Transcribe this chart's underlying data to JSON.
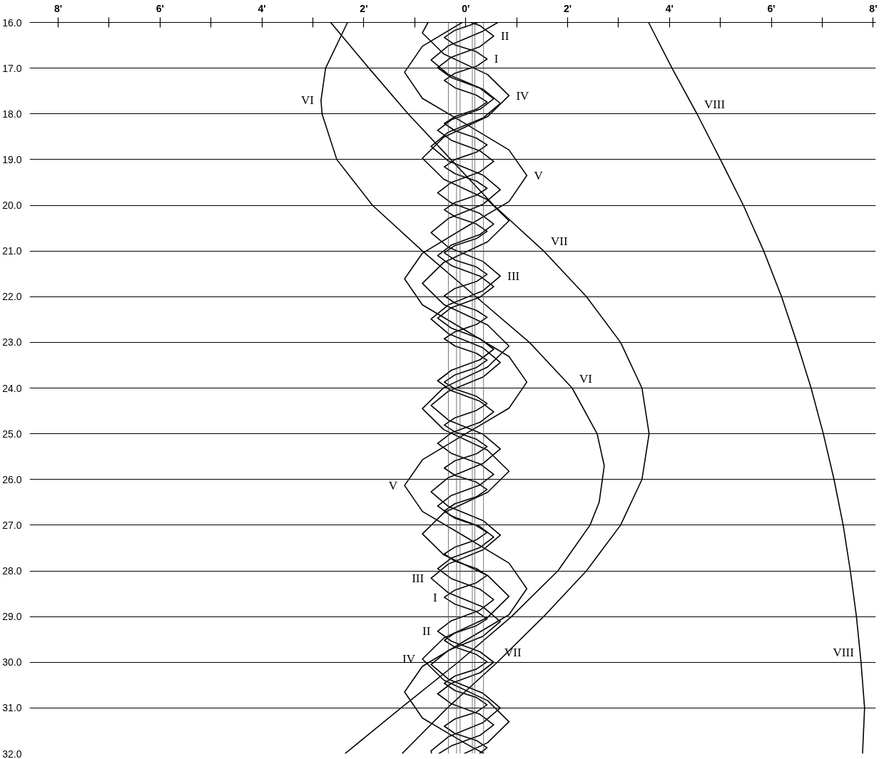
{
  "chart_data": {
    "type": "line",
    "xlim": [
      -8.56,
      8.05
    ],
    "ylim": [
      32,
      16
    ],
    "xticks": [
      {
        "value": -8,
        "label": "8'"
      },
      {
        "value": -7,
        "label": null
      },
      {
        "value": -6,
        "label": "6'"
      },
      {
        "value": -5,
        "label": null
      },
      {
        "value": -4,
        "label": "4'"
      },
      {
        "value": -3,
        "label": null
      },
      {
        "value": -2,
        "label": "2'"
      },
      {
        "value": -1,
        "label": null
      },
      {
        "value": 0,
        "label": "0'"
      },
      {
        "value": 1,
        "label": null
      },
      {
        "value": 2,
        "label": "2'"
      },
      {
        "value": 3,
        "label": null
      },
      {
        "value": 4,
        "label": "4'"
      },
      {
        "value": 5,
        "label": null
      },
      {
        "value": 6,
        "label": "6'"
      },
      {
        "value": 7,
        "label": null
      },
      {
        "value": 8,
        "label": "8'"
      }
    ],
    "yticks": [
      {
        "value": 16,
        "label": "16.0"
      },
      {
        "value": 17,
        "label": "17.0"
      },
      {
        "value": 18,
        "label": "18.0"
      },
      {
        "value": 19,
        "label": "19.0"
      },
      {
        "value": 20,
        "label": "20.0"
      },
      {
        "value": 21,
        "label": "21.0"
      },
      {
        "value": 22,
        "label": "22.0"
      },
      {
        "value": 23,
        "label": "23.0"
      },
      {
        "value": 24,
        "label": "24.0"
      },
      {
        "value": 25,
        "label": "25.0"
      },
      {
        "value": 26,
        "label": "26.0"
      },
      {
        "value": 27,
        "label": "27.0"
      },
      {
        "value": 28,
        "label": "28.0"
      },
      {
        "value": 29,
        "label": "29.0"
      },
      {
        "value": 30,
        "label": "30.0"
      },
      {
        "value": 31,
        "label": "31.0"
      },
      {
        "value": 32,
        "label": "32.0"
      }
    ],
    "grid": "y",
    "series": [
      {
        "color": "#000000",
        "x": [
          3.59,
          4.05,
          4.54,
          5.0,
          5.45,
          5.85,
          6.2,
          6.5,
          6.78,
          7.02,
          7.23,
          7.41,
          7.55,
          7.67,
          7.76,
          7.83,
          7.79
        ],
        "values": [
          16,
          17,
          18,
          19,
          20,
          21,
          22,
          23,
          24,
          25,
          26,
          27,
          28,
          29,
          30,
          31,
          32
        ]
      },
      {
        "color": "#000000",
        "x": [
          -2.65,
          -1.9,
          -1.13,
          -0.29,
          0.55,
          1.53,
          2.37,
          3.04,
          3.46,
          3.6,
          3.46,
          3.04,
          2.37,
          1.53,
          0.62,
          -0.36,
          -1.25
        ],
        "values": [
          16,
          17,
          18,
          19,
          20,
          21,
          22,
          23,
          24,
          25,
          26,
          27,
          28,
          29,
          30,
          31,
          32
        ]
      },
      {
        "color": "#000000",
        "x": [
          -2.32,
          -2.75,
          -2.84,
          -2.82,
          -2.53,
          -1.83,
          -0.85,
          0.2,
          1.25,
          2.09,
          2.58,
          2.72,
          2.62,
          2.44,
          1.81,
          0.9,
          -0.15,
          -1.27,
          -2.37
        ],
        "values": [
          16,
          17,
          17.7,
          18,
          19,
          20,
          21,
          22,
          23,
          24,
          25,
          25.7,
          26.5,
          27,
          28,
          29,
          30,
          31,
          32
        ]
      },
      {
        "color": "#000000",
        "x": [
          -0.07,
          -0.85,
          -1.2,
          -0.85,
          0,
          0.85,
          1.2,
          0.85,
          0,
          -0.85,
          -1.2,
          -0.85,
          0,
          0.85,
          1.2,
          0.85,
          0,
          -0.85,
          -1.2,
          -0.85,
          0,
          0.85,
          1.2,
          0.85,
          0,
          -0.85,
          -1.2,
          -0.85,
          0,
          0.36
        ],
        "values": [
          16.0,
          16.52,
          17.09,
          17.66,
          18.22,
          18.79,
          19.35,
          19.92,
          20.48,
          21.05,
          21.61,
          22.18,
          22.74,
          23.31,
          23.87,
          24.44,
          25.0,
          25.57,
          26.13,
          26.7,
          27.26,
          27.83,
          28.39,
          28.96,
          29.52,
          30.09,
          30.65,
          31.22,
          31.78,
          32.0
        ]
      },
      {
        "color": "#000000",
        "x": [
          -0.74,
          -0.85,
          -0.43,
          0.43,
          0.85,
          0.43,
          -0.43,
          -0.85,
          -0.43,
          0.43,
          0.85,
          0.43,
          -0.43,
          -0.85,
          -0.43,
          0.43,
          0.85,
          0.43,
          -0.43,
          -0.85,
          -0.43,
          0.43,
          0.85,
          0.43,
          -0.43,
          -0.85,
          -0.43,
          0.43,
          0.85,
          0.43,
          -0.43,
          -0.85,
          -0.43,
          0.43,
          0.85,
          0.43,
          -0.03
        ],
        "values": [
          16.0,
          16.23,
          16.69,
          17.14,
          17.6,
          18.06,
          18.51,
          18.97,
          19.43,
          19.88,
          20.34,
          20.8,
          21.25,
          21.71,
          22.17,
          22.62,
          23.08,
          23.54,
          23.99,
          24.45,
          24.91,
          25.36,
          25.82,
          26.28,
          26.73,
          27.19,
          27.65,
          28.1,
          28.56,
          29.02,
          29.47,
          29.93,
          30.39,
          30.84,
          31.3,
          31.76,
          32.0
        ]
      },
      {
        "color": "#000000",
        "x": [
          0.63,
          0.34,
          -0.34,
          -0.68,
          -0.34,
          0.34,
          0.68,
          0.34,
          -0.34,
          -0.68,
          -0.34,
          0.34,
          0.68,
          0.34,
          -0.34,
          -0.68,
          -0.34,
          0.34,
          0.68,
          0.34,
          -0.34,
          -0.68,
          -0.34,
          0.34,
          0.68,
          0.34,
          -0.34,
          -0.68,
          -0.34,
          0.34,
          0.68,
          0.34,
          -0.34,
          -0.68,
          -0.34,
          0.34,
          0.68,
          0.34,
          -0.34,
          -0.68,
          -0.34,
          0.34,
          0.68,
          0.34,
          -0.34,
          -0.68,
          -0.34,
          0.34,
          0.68,
          0.34,
          -0.34,
          -0.68,
          -0.67
        ],
        "values": [
          16.0,
          16.19,
          16.51,
          16.82,
          17.14,
          17.46,
          17.77,
          18.09,
          18.4,
          18.71,
          19.03,
          19.34,
          19.66,
          19.98,
          20.29,
          20.6,
          20.92,
          21.23,
          21.55,
          21.87,
          22.18,
          22.49,
          22.81,
          23.12,
          23.44,
          23.76,
          24.07,
          24.38,
          24.7,
          25.01,
          25.33,
          25.65,
          25.96,
          26.27,
          26.59,
          26.9,
          27.22,
          27.54,
          27.85,
          28.16,
          28.48,
          28.79,
          29.11,
          29.43,
          29.74,
          30.05,
          30.37,
          30.68,
          31.0,
          31.32,
          31.63,
          31.94,
          32.0
        ]
      },
      {
        "color": "#000000",
        "x": [
          0.1,
          0.28,
          0.55,
          0.28,
          -0.28,
          -0.55,
          -0.28,
          0.28,
          0.55,
          0.28,
          -0.28,
          -0.55,
          -0.28,
          0.28,
          0.55,
          0.28,
          -0.28,
          -0.55,
          -0.28,
          0.28,
          0.55,
          0.28,
          -0.28,
          -0.55,
          -0.28,
          0.28,
          0.55,
          0.28,
          -0.28,
          -0.55,
          -0.28,
          0.28,
          0.55,
          0.28,
          -0.28,
          -0.55,
          -0.28,
          0.28,
          0.55,
          0.28,
          -0.28,
          -0.55,
          -0.28,
          0.28,
          0.55,
          0.28,
          -0.28,
          -0.55,
          -0.28,
          0.28,
          0.55,
          0.28,
          -0.28,
          -0.55,
          -0.28,
          0.28,
          0.55,
          0.28,
          -0.28,
          -0.55,
          -0.28,
          0.28,
          0.55,
          0.28,
          -0.28,
          -0.55,
          -0.28,
          0.28,
          0.55,
          0.28,
          -0.28,
          -0.53
        ],
        "values": [
          16.0,
          16.07,
          16.3,
          16.53,
          16.76,
          16.99,
          17.21,
          17.44,
          17.67,
          17.9,
          18.13,
          18.36,
          18.58,
          18.81,
          19.04,
          19.27,
          19.5,
          19.73,
          19.95,
          20.18,
          20.41,
          20.64,
          20.87,
          21.1,
          21.32,
          21.55,
          21.78,
          22.01,
          22.24,
          22.47,
          22.69,
          22.92,
          23.15,
          23.38,
          23.61,
          23.84,
          24.06,
          24.29,
          24.52,
          24.75,
          24.98,
          25.21,
          25.43,
          25.66,
          25.89,
          26.12,
          26.35,
          26.58,
          26.8,
          27.03,
          27.26,
          27.49,
          27.72,
          27.95,
          28.17,
          28.4,
          28.63,
          28.86,
          29.09,
          29.32,
          29.54,
          29.77,
          30.0,
          30.23,
          30.46,
          30.69,
          30.91,
          31.14,
          31.37,
          31.6,
          31.83,
          32.0
        ]
      },
      {
        "color": "#000000",
        "x": [
          0.24,
          -0.21,
          -0.42,
          -0.21,
          0.21,
          0.42,
          0.21,
          -0.21,
          -0.42,
          -0.21,
          0.21,
          0.42,
          0.21,
          -0.21,
          -0.42,
          -0.21,
          0.21,
          0.42,
          0.21,
          -0.21,
          -0.42,
          -0.21,
          0.21,
          0.42,
          0.21,
          -0.21,
          -0.42,
          -0.21,
          0.21,
          0.42,
          0.21,
          -0.21,
          -0.42,
          -0.21,
          0.21,
          0.42,
          0.21,
          -0.21,
          -0.42,
          -0.21,
          0.21,
          0.42,
          0.21,
          -0.21,
          -0.42,
          -0.21,
          0.21,
          0.42,
          0.21,
          -0.21,
          -0.42,
          -0.21,
          0.21,
          0.42,
          0.21,
          -0.21,
          -0.42,
          -0.21,
          0.21,
          0.42,
          0.21,
          -0.21,
          -0.42,
          -0.21,
          0.21,
          0.42,
          0.21,
          -0.21,
          -0.42,
          -0.21,
          0.21,
          0.42,
          0.21,
          -0.21,
          -0.42,
          -0.21,
          0.21,
          0.42,
          0.21,
          -0.21,
          -0.42,
          -0.21,
          0.21,
          0.42,
          0.21,
          -0.21,
          -0.42,
          -0.21,
          0.21,
          0.42,
          0.21,
          -0.21,
          -0.42,
          -0.21,
          0.21,
          0.42,
          0.21,
          -0.21,
          -0.42,
          -0.21,
          0.21,
          0.42,
          0.27
        ],
        "values": [
          16.0,
          16.17,
          16.33,
          16.49,
          16.64,
          16.8,
          16.96,
          17.11,
          17.27,
          17.43,
          17.59,
          17.74,
          17.9,
          18.06,
          18.21,
          18.37,
          18.53,
          18.68,
          18.84,
          19.0,
          19.16,
          19.31,
          19.47,
          19.63,
          19.78,
          19.94,
          20.1,
          20.25,
          20.41,
          20.57,
          20.73,
          20.88,
          21.04,
          21.2,
          21.35,
          21.51,
          21.67,
          21.82,
          21.98,
          22.14,
          22.3,
          22.45,
          22.61,
          22.77,
          22.92,
          23.08,
          23.24,
          23.39,
          23.55,
          23.71,
          23.87,
          24.02,
          24.18,
          24.34,
          24.49,
          24.65,
          24.81,
          24.96,
          25.12,
          25.28,
          25.44,
          25.59,
          25.75,
          25.91,
          26.06,
          26.22,
          26.38,
          26.53,
          26.69,
          26.85,
          27.01,
          27.16,
          27.32,
          27.48,
          27.63,
          27.79,
          27.95,
          28.1,
          28.26,
          28.42,
          28.58,
          28.73,
          28.89,
          29.05,
          29.2,
          29.36,
          29.52,
          29.67,
          29.83,
          29.99,
          30.15,
          30.3,
          30.46,
          30.62,
          30.77,
          30.93,
          31.09,
          31.24,
          31.4,
          31.56,
          31.71,
          31.87,
          32.0
        ]
      }
    ],
    "ref_lines": [
      {
        "axis": "x",
        "value": -0.34,
        "color": "#555555"
      },
      {
        "axis": "x",
        "value": -0.18,
        "color": "#555555"
      },
      {
        "axis": "x",
        "value": -0.11,
        "color": "#555555"
      },
      {
        "axis": "x",
        "value": 0.13,
        "color": "#555555"
      },
      {
        "axis": "x",
        "value": 0.18,
        "color": "#555555"
      },
      {
        "axis": "x",
        "value": 0.35,
        "color": "#555555"
      }
    ],
    "annotations": [
      {
        "text": "II",
        "x": 0.55,
        "y": 16.3
      },
      {
        "text": "I",
        "x": 0.42,
        "y": 16.8
      },
      {
        "text": "IV",
        "x": 0.85,
        "y": 17.6
      },
      {
        "text": "VI",
        "x": -2.84,
        "y": 17.7
      },
      {
        "text": "VIII",
        "x": 4.54,
        "y": 18
      },
      {
        "text": "V",
        "x": 1.2,
        "y": 19.35
      },
      {
        "text": "VII",
        "x": 1.53,
        "y": 21
      },
      {
        "text": "III",
        "x": 0.68,
        "y": 21.55
      },
      {
        "text": "VI",
        "x": 2.09,
        "y": 24
      },
      {
        "text": "V",
        "x": -1.2,
        "y": 26.13
      },
      {
        "text": "III",
        "x": -0.68,
        "y": 28.16
      },
      {
        "text": "I",
        "x": -0.42,
        "y": 28.58
      },
      {
        "text": "II",
        "x": -0.55,
        "y": 29.32
      },
      {
        "text": "IV",
        "x": -0.85,
        "y": 29.93
      },
      {
        "text": "VII",
        "x": 0.62,
        "y": 30
      },
      {
        "text": "VIII",
        "x": 7.76,
        "y": 30
      }
    ]
  }
}
